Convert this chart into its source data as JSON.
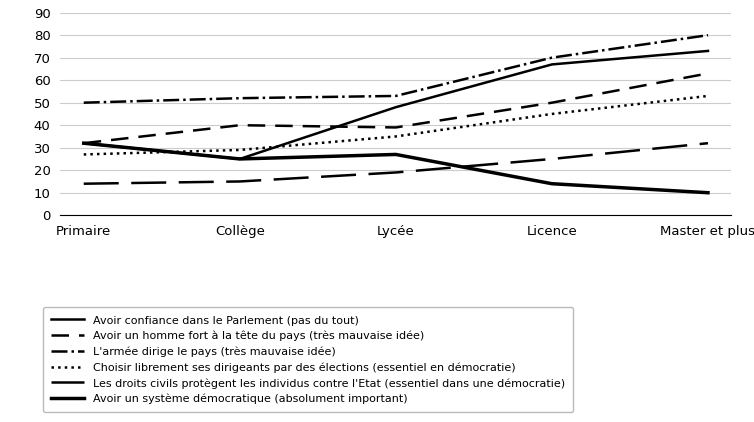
{
  "categories": [
    "Primaire",
    "Collège",
    "Lycée",
    "Licence",
    "Master et plus"
  ],
  "series": [
    {
      "label": "Avoir confiance dans le Parlement (pas du tout)",
      "values": [
        32,
        25,
        48,
        67,
        73
      ],
      "linestyle": "solid",
      "linewidth": 1.8,
      "color": "#000000",
      "dashes": null
    },
    {
      "label": "Avoir un homme fort à la tête du pays (très mauvaise idée)",
      "values": [
        32,
        40,
        39,
        50,
        63
      ],
      "linestyle": "dashed",
      "linewidth": 1.8,
      "color": "#000000",
      "dashes": [
        7,
        4
      ]
    },
    {
      "label": "L'armée dirige le pays (très mauvaise idée)",
      "values": [
        50,
        52,
        53,
        70,
        80
      ],
      "linestyle": "dashdot",
      "linewidth": 1.8,
      "color": "#000000",
      "dashes": null
    },
    {
      "label": "Choisir librement ses dirigeants par des élections (essentiel en démocratie)",
      "values": [
        27,
        29,
        35,
        45,
        53
      ],
      "linestyle": "dotted",
      "linewidth": 1.8,
      "color": "#000000",
      "dashes": null
    },
    {
      "label": "Les droits civils protègent les individus contre l'Etat (essentiel dans une démocratie)",
      "values": [
        14,
        15,
        19,
        25,
        32
      ],
      "linestyle": "dashed",
      "linewidth": 1.8,
      "color": "#000000",
      "dashes": [
        14,
        5
      ]
    },
    {
      "label": "Avoir un système démocratique (absolument important)",
      "values": [
        32,
        25,
        27,
        14,
        10
      ],
      "linestyle": "solid",
      "linewidth": 2.5,
      "color": "#000000",
      "dashes": null
    }
  ],
  "ylim": [
    0,
    90
  ],
  "yticks": [
    0,
    10,
    20,
    30,
    40,
    50,
    60,
    70,
    80,
    90
  ],
  "background_color": "#ffffff",
  "grid_color": "#cccccc",
  "legend_fontsize": 8.0,
  "tick_fontsize": 9.5
}
